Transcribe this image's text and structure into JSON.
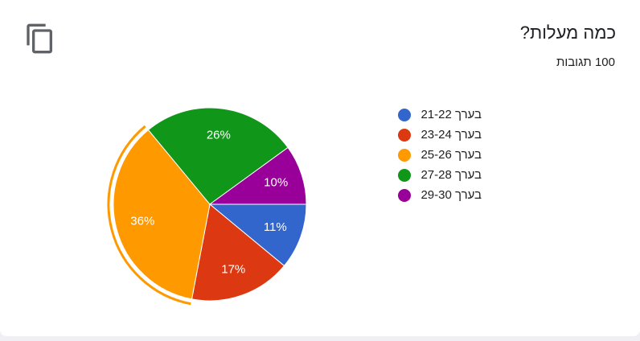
{
  "chart_data": {
    "type": "pie",
    "title": "כמה מעלות?",
    "subtitle": "100 תגובות",
    "categories": [
      "בערך 21-22",
      "בערך 23-24",
      "בערך 25-26",
      "בערך 27-28",
      "בערך 29-30"
    ],
    "values": [
      11,
      17,
      36,
      26,
      10
    ],
    "value_labels": [
      "11%",
      "17%",
      "36%",
      "26%",
      "10%"
    ],
    "colors": [
      "#3366cc",
      "#dc3912",
      "#ff9900",
      "#109618",
      "#990099"
    ]
  }
}
